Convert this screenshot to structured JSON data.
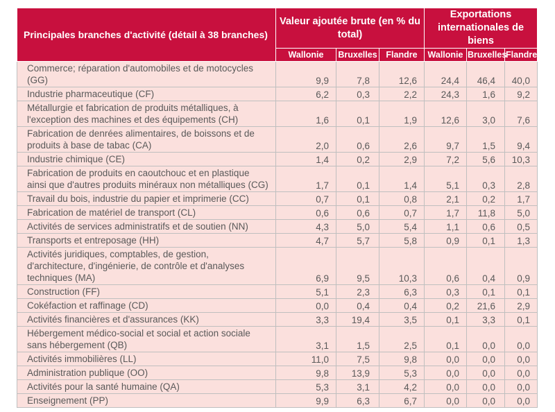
{
  "table": {
    "title": "Principales branches d'activité (détail à 38 branches)",
    "group1": "Valeur ajoutée brute (en % du total)",
    "group2": "Exportations internationales de biens",
    "columns": [
      "Wallonie",
      "Bruxelles",
      "Flandre",
      "Wallonie",
      "Bruxelles",
      "Flandre"
    ],
    "rows": [
      {
        "label": "Commerce; réparation d'automobiles et de motocycles (GG)",
        "values": [
          "9,9",
          "7,8",
          "12,6",
          "24,4",
          "46,4",
          "40,0"
        ]
      },
      {
        "label": "Industrie pharmaceutique (CF)",
        "values": [
          "6,2",
          "0,3",
          "2,2",
          "24,3",
          "1,6",
          "9,2"
        ]
      },
      {
        "label": "Métallurgie et fabrication de produits métalliques, à l'exception des machines et des équipements (CH)",
        "values": [
          "1,6",
          "0,1",
          "1,9",
          "12,6",
          "3,0",
          "7,6"
        ]
      },
      {
        "label": "Fabrication de denrées alimentaires, de boissons et de produits à base de tabac (CA)",
        "values": [
          "2,0",
          "0,6",
          "2,6",
          "9,7",
          "1,5",
          "9,4"
        ]
      },
      {
        "label": "Industrie chimique (CE)",
        "values": [
          "1,4",
          "0,2",
          "2,9",
          "7,2",
          "5,6",
          "10,3"
        ]
      },
      {
        "label": "Fabrication de produits en caoutchouc et en plastique ainsi que d'autres produits minéraux non métalliques (CG)",
        "values": [
          "1,7",
          "0,1",
          "1,4",
          "5,1",
          "0,3",
          "2,8"
        ]
      },
      {
        "label": "Travail du bois, industrie du papier et imprimerie (CC)",
        "values": [
          "0,7",
          "0,1",
          "0,8",
          "2,1",
          "0,2",
          "1,7"
        ]
      },
      {
        "label": "Fabrication de matériel de transport (CL)",
        "values": [
          "0,6",
          "0,6",
          "0,7",
          "1,7",
          "11,8",
          "5,0"
        ]
      },
      {
        "label": "Activités de services administratifs et de soutien (NN)",
        "values": [
          "4,3",
          "5,0",
          "5,4",
          "1,1",
          "0,6",
          "0,5"
        ]
      },
      {
        "label": "Transports et entreposage (HH)",
        "values": [
          "4,7",
          "5,7",
          "5,8",
          "0,9",
          "0,1",
          "1,3"
        ]
      },
      {
        "label": "Activités juridiques, comptables, de gestion, d'architecture, d'ingénierie, de contrôle et d'analyses techniques (MA)",
        "values": [
          "6,9",
          "9,5",
          "10,3",
          "0,6",
          "0,4",
          "0,9"
        ]
      },
      {
        "label": "Construction (FF)",
        "values": [
          "5,1",
          "2,3",
          "6,3",
          "0,3",
          "0,1",
          "0,1"
        ]
      },
      {
        "label": "Cokéfaction et raffinage (CD)",
        "values": [
          "0,0",
          "0,4",
          "0,4",
          "0,2",
          "21,6",
          "2,9"
        ]
      },
      {
        "label": "Activités financières et d'assurances (KK)",
        "values": [
          "3,3",
          "19,4",
          "3,5",
          "0,1",
          "3,3",
          "0,1"
        ]
      },
      {
        "label": "Hébergement médico-social et social et action sociale sans hébergement (QB)",
        "values": [
          "3,1",
          "1,5",
          "2,5",
          "0,1",
          "0,0",
          "0,0"
        ]
      },
      {
        "label": "Activités immobilières (LL)",
        "values": [
          "11,0",
          "7,5",
          "9,8",
          "0,0",
          "0,0",
          "0,0"
        ]
      },
      {
        "label": "Administration publique (OO)",
        "values": [
          "9,8",
          "13,9",
          "5,3",
          "0,0",
          "0,0",
          "0,0"
        ]
      },
      {
        "label": "Activités pour la santé humaine (QA)",
        "values": [
          "5,3",
          "3,1",
          "4,2",
          "0,0",
          "0,0",
          "0,0"
        ]
      },
      {
        "label": "Enseignement (PP)",
        "values": [
          "9,9",
          "6,3",
          "6,7",
          "0,0",
          "0,0",
          "0,0"
        ]
      }
    ]
  }
}
